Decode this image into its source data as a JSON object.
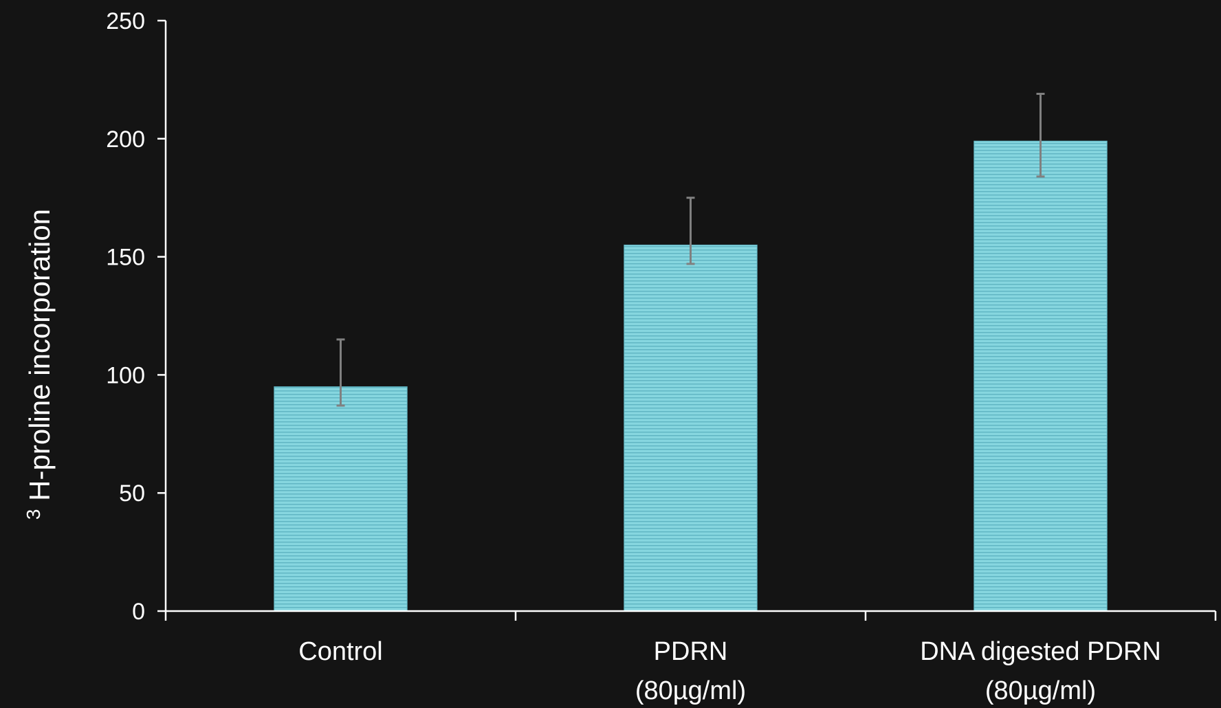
{
  "chart_data": {
    "type": "bar",
    "title": "",
    "xlabel": "",
    "ylabel": {
      "superscript": "3",
      "text": "H-proline incorporation"
    },
    "ylim": [
      0,
      250
    ],
    "yticks": [
      "0",
      "50",
      "100",
      "150",
      "200",
      "250"
    ],
    "categories": [
      [
        "Control"
      ],
      [
        "PDRN",
        "(80µg/ml)"
      ],
      [
        "DNA digested PDRN",
        "(80µg/ml)"
      ]
    ],
    "values": [
      95,
      155,
      199
    ],
    "error_bars": [
      {
        "low": 87,
        "high": 115
      },
      {
        "low": 147,
        "high": 175
      },
      {
        "low": 184,
        "high": 219
      }
    ],
    "grid": false,
    "legend": "none",
    "colors": {
      "background": "#141414",
      "bar_fill": "#7fd0da",
      "bar_stripe": "#5fb4c2",
      "axis": "#ffffff",
      "error_bar": "#808080"
    }
  }
}
